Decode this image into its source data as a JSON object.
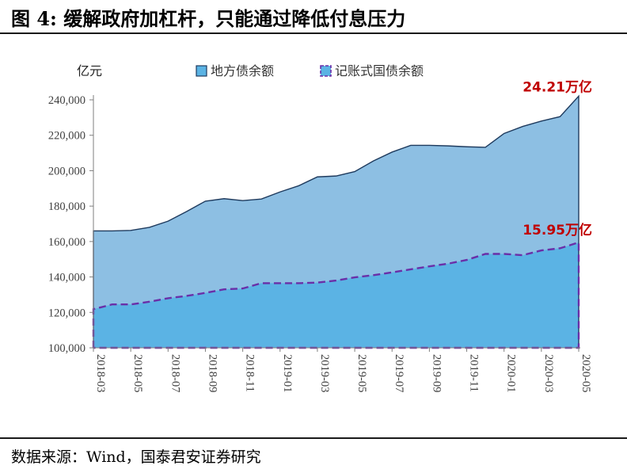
{
  "figure": {
    "title": "图 4:   缓解政府加杠杆，只能通过降低付息压力",
    "source": "数据来源：Wind，国泰君安证券研究"
  },
  "colors": {
    "local_fill": "#8dbfe3",
    "local_line": "#1f3b5e",
    "treasury_fill": "#5bb3e4",
    "treasury_line": "#6a2fa8",
    "annotation": "#c00000"
  },
  "chart_data": {
    "type": "area",
    "unit_label": "亿元",
    "ylim": [
      100000,
      250000
    ],
    "yticks": [
      100000,
      120000,
      140000,
      160000,
      180000,
      200000,
      220000,
      240000
    ],
    "ytick_labels": [
      "100,000",
      "120,000",
      "140,000",
      "160,000",
      "180,000",
      "200,000",
      "220,000",
      "240,000"
    ],
    "x": [
      "2018-03",
      "2018-04",
      "2018-05",
      "2018-06",
      "2018-07",
      "2018-08",
      "2018-09",
      "2018-10",
      "2018-11",
      "2018-12",
      "2019-01",
      "2019-02",
      "2019-03",
      "2019-04",
      "2019-05",
      "2019-06",
      "2019-07",
      "2019-08",
      "2019-09",
      "2019-10",
      "2019-11",
      "2019-12",
      "2020-01",
      "2020-02",
      "2020-03",
      "2020-04",
      "2020-05"
    ],
    "xtick_labels": [
      "2018-03",
      "2018-05",
      "2018-07",
      "2018-09",
      "2018-11",
      "2019-01",
      "2019-03",
      "2019-05",
      "2019-07",
      "2019-09",
      "2019-11",
      "2020-01",
      "2020-03",
      "2020-05"
    ],
    "legend_position": "top",
    "grid": false,
    "series": [
      {
        "name": "地方债余额",
        "style": "area",
        "values": [
          166000,
          166000,
          166300,
          168000,
          171500,
          177000,
          182800,
          184200,
          183100,
          184000,
          188000,
          191500,
          196500,
          197000,
          199500,
          205500,
          210500,
          214300,
          214300,
          214000,
          213500,
          213200,
          221000,
          225000,
          228000,
          230500,
          242100
        ]
      },
      {
        "name": "记账式国债余额",
        "style": "dashed",
        "values": [
          121800,
          124500,
          124500,
          126000,
          128000,
          129300,
          131000,
          133000,
          133500,
          136500,
          136500,
          136500,
          136800,
          138000,
          139800,
          141000,
          142600,
          144300,
          146000,
          147500,
          149600,
          153000,
          153000,
          152300,
          155000,
          156200,
          159500
        ]
      }
    ],
    "annotations": [
      {
        "text": "24.21万亿",
        "series": 0,
        "index": 26
      },
      {
        "text": "15.95万亿",
        "series": 1,
        "index": 26
      }
    ]
  }
}
